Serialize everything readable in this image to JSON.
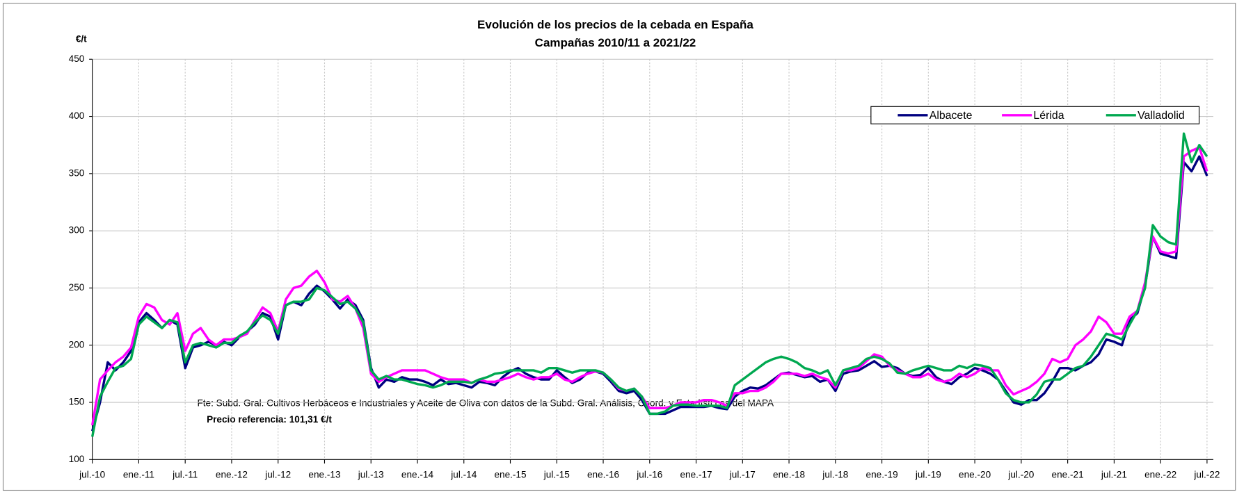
{
  "chart_data": {
    "type": "line",
    "title": "Evolución de los precios de la cebada en España",
    "subtitle": "Campañas 2010/11 a 2021/22",
    "y_label": "€/t",
    "annotations": [
      "Fte: Subd. Gral. Cultivos Herbáceos e Industriales y Aceite de Oliva con datos de la Subd. Gral. Análisis, Coord. y Estadísti cas del MAPA",
      "Precio referencia: 101,31 €/t"
    ],
    "categories": [
      "jul.-10",
      null,
      null,
      null,
      null,
      null,
      "ene.-11",
      null,
      null,
      null,
      null,
      null,
      "jul.-11",
      null,
      null,
      null,
      null,
      null,
      "ene.-12",
      null,
      null,
      null,
      null,
      null,
      "jul.-12",
      null,
      null,
      null,
      null,
      null,
      "ene.-13",
      null,
      null,
      null,
      null,
      null,
      "jul.-13",
      null,
      null,
      null,
      null,
      null,
      "ene.-14",
      null,
      null,
      null,
      null,
      null,
      "jul.-14",
      null,
      null,
      null,
      null,
      null,
      "ene.-15",
      null,
      null,
      null,
      null,
      null,
      "jul.-15",
      null,
      null,
      null,
      null,
      null,
      "ene.-16",
      null,
      null,
      null,
      null,
      null,
      "jul.-16",
      null,
      null,
      null,
      null,
      null,
      "ene.-17",
      null,
      null,
      null,
      null,
      null,
      "jul.-17",
      null,
      null,
      null,
      null,
      null,
      "ene.-18",
      null,
      null,
      null,
      null,
      null,
      "jul.-18",
      null,
      null,
      null,
      null,
      null,
      "ene.-19",
      null,
      null,
      null,
      null,
      null,
      "jul.-19",
      null,
      null,
      null,
      null,
      null,
      "ene.-20",
      null,
      null,
      null,
      null,
      null,
      "jul.-20",
      null,
      null,
      null,
      null,
      null,
      "ene.-21",
      null,
      null,
      null,
      null,
      null,
      "jul.-21",
      null,
      null,
      null,
      null,
      null,
      "ene.-22",
      null,
      null,
      null,
      null,
      null,
      "jul.-22"
    ],
    "series": [
      {
        "name": "Albacete",
        "color": "#000080",
        "values": [
          125,
          150,
          185,
          178,
          185,
          195,
          220,
          228,
          222,
          215,
          222,
          218,
          180,
          198,
          200,
          203,
          200,
          203,
          200,
          207,
          212,
          218,
          228,
          225,
          205,
          235,
          238,
          235,
          245,
          252,
          247,
          240,
          232,
          240,
          235,
          222,
          180,
          163,
          170,
          168,
          172,
          170,
          170,
          168,
          165,
          170,
          166,
          167,
          165,
          163,
          168,
          167,
          165,
          172,
          177,
          180,
          175,
          172,
          170,
          170,
          178,
          172,
          167,
          170,
          176,
          177,
          175,
          168,
          160,
          158,
          160,
          152,
          140,
          140,
          140,
          143,
          146,
          146,
          146,
          146,
          147,
          145,
          144,
          155,
          160,
          163,
          162,
          165,
          170,
          175,
          176,
          174,
          172,
          173,
          168,
          170,
          160,
          175,
          177,
          178,
          182,
          186,
          181,
          182,
          180,
          175,
          173,
          174,
          180,
          172,
          168,
          166,
          172,
          175,
          180,
          178,
          175,
          170,
          160,
          150,
          148,
          152,
          152,
          158,
          168,
          180,
          180,
          178,
          182,
          185,
          192,
          205,
          203,
          200,
          222,
          228,
          252,
          295,
          280,
          278,
          276,
          360,
          352,
          365,
          348
        ]
      },
      {
        "name": "Lérida",
        "color": "#ff00ff",
        "values": [
          130,
          170,
          178,
          185,
          190,
          198,
          225,
          236,
          233,
          222,
          218,
          228,
          195,
          210,
          215,
          205,
          200,
          205,
          205,
          207,
          210,
          222,
          233,
          228,
          212,
          240,
          250,
          252,
          260,
          265,
          255,
          240,
          238,
          243,
          232,
          215,
          175,
          168,
          172,
          175,
          178,
          178,
          178,
          178,
          175,
          172,
          170,
          170,
          170,
          167,
          170,
          168,
          168,
          170,
          172,
          175,
          172,
          170,
          172,
          172,
          175,
          170,
          168,
          172,
          175,
          177,
          176,
          170,
          162,
          160,
          162,
          155,
          145,
          145,
          145,
          147,
          150,
          150,
          150,
          152,
          152,
          150,
          147,
          158,
          158,
          160,
          160,
          163,
          168,
          175,
          175,
          175,
          173,
          175,
          172,
          170,
          163,
          178,
          178,
          180,
          186,
          192,
          190,
          182,
          178,
          175,
          172,
          172,
          175,
          170,
          168,
          170,
          175,
          172,
          175,
          180,
          178,
          178,
          165,
          157,
          160,
          163,
          168,
          175,
          188,
          185,
          188,
          200,
          205,
          212,
          225,
          220,
          210,
          210,
          225,
          230,
          255,
          295,
          282,
          280,
          282,
          365,
          370,
          373,
          352
        ]
      },
      {
        "name": "Valladolid",
        "color": "#00a850",
        "values": [
          120,
          155,
          168,
          180,
          182,
          188,
          218,
          225,
          220,
          215,
          222,
          220,
          185,
          200,
          202,
          200,
          198,
          202,
          202,
          208,
          212,
          220,
          226,
          222,
          210,
          235,
          238,
          238,
          240,
          250,
          248,
          242,
          236,
          238,
          232,
          220,
          178,
          170,
          173,
          170,
          170,
          168,
          166,
          165,
          163,
          165,
          168,
          168,
          168,
          167,
          170,
          172,
          175,
          176,
          178,
          178,
          178,
          178,
          176,
          180,
          180,
          178,
          176,
          178,
          178,
          178,
          176,
          170,
          163,
          160,
          162,
          155,
          140,
          140,
          142,
          147,
          148,
          148,
          147,
          147,
          147,
          147,
          145,
          165,
          170,
          175,
          180,
          185,
          188,
          190,
          188,
          185,
          180,
          178,
          175,
          178,
          165,
          178,
          180,
          182,
          188,
          190,
          188,
          184,
          176,
          175,
          178,
          180,
          182,
          180,
          178,
          178,
          182,
          180,
          183,
          182,
          180,
          170,
          158,
          152,
          150,
          150,
          157,
          168,
          170,
          170,
          175,
          180,
          182,
          190,
          200,
          210,
          208,
          205,
          218,
          230,
          250,
          305,
          295,
          290,
          288,
          385,
          360,
          375,
          365
        ]
      }
    ],
    "ylim": [
      100,
      450
    ],
    "yticks": [
      100,
      150,
      200,
      250,
      300,
      350,
      400,
      450
    ],
    "grid": true,
    "legend": "upper right"
  }
}
